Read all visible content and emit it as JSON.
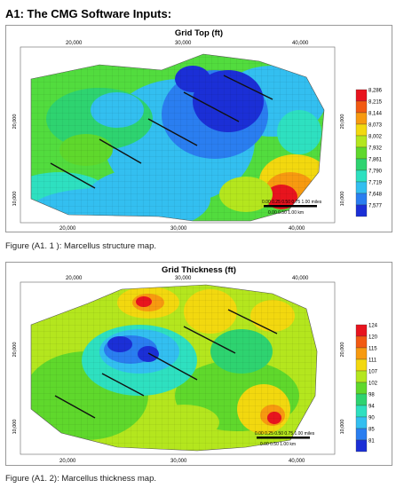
{
  "heading": "A1: The CMG Software Inputs:",
  "figures": [
    {
      "title": "Grid Top (ft)",
      "caption": "Figure (A1. 1 ): Marcellus structure map.",
      "x_ticks_top": [
        "20,000",
        "30,000",
        "40,000"
      ],
      "x_ticks_bottom": [
        "20,000",
        "30,000",
        "40,000"
      ],
      "y_tick_left_upper": "20,000",
      "y_tick_left_lower": "10,000",
      "y_tick_right_upper": "20,000",
      "y_tick_right_lower": "10,000",
      "scale_miles": "0.00 0.25 0.50 0.75 1.00 miles",
      "scale_km": "0.00     0.50     1.00 km",
      "legend": [
        {
          "value": "8,286",
          "color": "#e8141e"
        },
        {
          "value": "8,215",
          "color": "#f25a12"
        },
        {
          "value": "8,144",
          "color": "#f79a10"
        },
        {
          "value": "8,073",
          "color": "#f2d80f"
        },
        {
          "value": "8,002",
          "color": "#b4e61e"
        },
        {
          "value": "7,932",
          "color": "#5fd82c"
        },
        {
          "value": "7,861",
          "color": "#2ed370"
        },
        {
          "value": "7,790",
          "color": "#2ee0c0"
        },
        {
          "value": "7,719",
          "color": "#33bff0"
        },
        {
          "value": "7,648",
          "color": "#2a7ef0"
        },
        {
          "value": "7,577",
          "color": "#1b2fd6"
        }
      ]
    },
    {
      "title": "Grid Thickness (ft)",
      "caption": "Figure (A1. 2): Marcellus thickness map.",
      "x_ticks_top": [
        "20,000",
        "30,000",
        "40,000"
      ],
      "x_ticks_bottom": [
        "20,000",
        "30,000",
        "40,000"
      ],
      "y_tick_left_upper": "20,000",
      "y_tick_left_lower": "10,000",
      "y_tick_right_upper": "20,000",
      "y_tick_right_lower": "10,000",
      "scale_miles": "0.00 0.25 0.50 0.75 1.00 miles",
      "scale_km": "0.00     0.50     1.00 km",
      "legend": [
        {
          "value": "124",
          "color": "#e8141e"
        },
        {
          "value": "120",
          "color": "#f25a12"
        },
        {
          "value": "115",
          "color": "#f79a10"
        },
        {
          "value": "111",
          "color": "#f2d80f"
        },
        {
          "value": "107",
          "color": "#b4e61e"
        },
        {
          "value": "102",
          "color": "#5fd82c"
        },
        {
          "value": "98",
          "color": "#2ed370"
        },
        {
          "value": "94",
          "color": "#2ee0c0"
        },
        {
          "value": "90",
          "color": "#33bff0"
        },
        {
          "value": "85",
          "color": "#2a7ef0"
        },
        {
          "value": "81",
          "color": "#1b2fd6"
        }
      ]
    }
  ]
}
